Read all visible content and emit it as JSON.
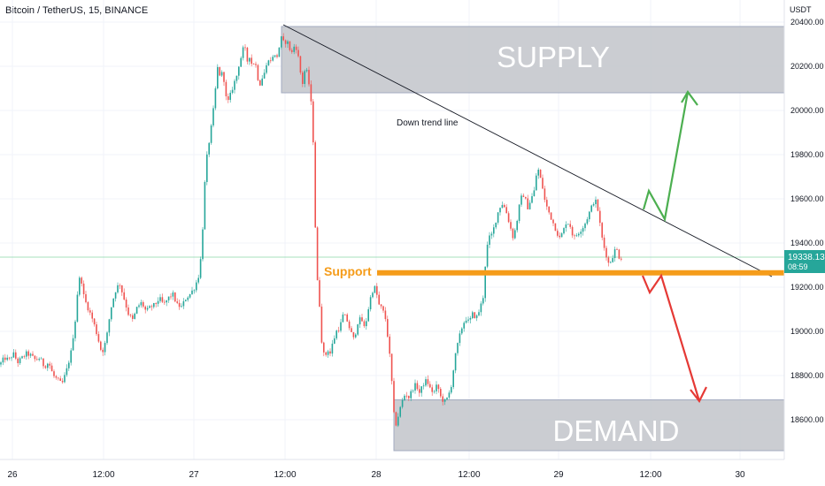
{
  "header": {
    "symbol_title": "Bitcoin / TetherUS, 15, BINANCE"
  },
  "price_axis": {
    "unit": "USDT",
    "ticks": [
      "20400.00",
      "20200.00",
      "20000.00",
      "19800.00",
      "19600.00",
      "19400.00",
      "19200.00",
      "19000.00",
      "18800.00",
      "18600.00"
    ]
  },
  "price_label": {
    "price": "19338.13",
    "countdown": "08:59",
    "color": "#26a69a"
  },
  "time_axis": {
    "ticks": [
      "26",
      "12:00",
      "27",
      "12:00",
      "28",
      "12:00",
      "29",
      "12:00",
      "30"
    ]
  },
  "annotations": {
    "supply_label": "SUPPLY",
    "demand_label": "DEMAND",
    "support_label": "Support",
    "trend_label": "Down trend line"
  },
  "colors": {
    "up": "#26a69a",
    "down": "#ef5350",
    "zone_fill": "#c9cbd0",
    "support": "#f59c1a",
    "arrow_up": "#4caf50",
    "arrow_down": "#e53935"
  },
  "chart_data": {
    "type": "candlestick",
    "ylim": [
      18460,
      20420
    ],
    "ylabel": "USDT",
    "supply_zone": [
      20080,
      20380
    ],
    "demand_zone": [
      18460,
      18690
    ],
    "support_level": 19265,
    "current_price": 19338.13,
    "close_path": [
      [
        0,
        18850
      ],
      [
        5,
        18880
      ],
      [
        10,
        18870
      ],
      [
        15,
        18900
      ],
      [
        20,
        18860
      ],
      [
        25,
        18880
      ],
      [
        30,
        18900
      ],
      [
        35,
        18890
      ],
      [
        40,
        18870
      ],
      [
        45,
        18880
      ],
      [
        50,
        18840
      ],
      [
        55,
        18860
      ],
      [
        60,
        18800
      ],
      [
        65,
        18780
      ],
      [
        70,
        18760
      ],
      [
        75,
        18820
      ],
      [
        80,
        18900
      ],
      [
        85,
        19050
      ],
      [
        88,
        19200
      ],
      [
        91,
        19260
      ],
      [
        95,
        19150
      ],
      [
        100,
        19100
      ],
      [
        105,
        19050
      ],
      [
        110,
        18980
      ],
      [
        115,
        18900
      ],
      [
        120,
        18960
      ],
      [
        125,
        19100
      ],
      [
        130,
        19180
      ],
      [
        135,
        19220
      ],
      [
        140,
        19150
      ],
      [
        145,
        19080
      ],
      [
        150,
        19050
      ],
      [
        155,
        19110
      ],
      [
        160,
        19130
      ],
      [
        165,
        19090
      ],
      [
        170,
        19110
      ],
      [
        175,
        19120
      ],
      [
        180,
        19150
      ],
      [
        185,
        19120
      ],
      [
        190,
        19150
      ],
      [
        195,
        19170
      ],
      [
        200,
        19120
      ],
      [
        205,
        19110
      ],
      [
        210,
        19150
      ],
      [
        215,
        19170
      ],
      [
        220,
        19200
      ],
      [
        225,
        19260
      ],
      [
        228,
        19380
      ],
      [
        231,
        19650
      ],
      [
        234,
        19800
      ],
      [
        237,
        19880
      ],
      [
        240,
        19960
      ],
      [
        243,
        20080
      ],
      [
        246,
        20200
      ],
      [
        249,
        20150
      ],
      [
        252,
        20180
      ],
      [
        255,
        20060
      ],
      [
        258,
        20040
      ],
      [
        261,
        20080
      ],
      [
        264,
        20120
      ],
      [
        267,
        20150
      ],
      [
        270,
        20210
      ],
      [
        273,
        20250
      ],
      [
        276,
        20300
      ],
      [
        279,
        20220
      ],
      [
        282,
        20250
      ],
      [
        285,
        20200
      ],
      [
        288,
        20230
      ],
      [
        291,
        20150
      ],
      [
        294,
        20120
      ],
      [
        297,
        20160
      ],
      [
        300,
        20180
      ],
      [
        303,
        20240
      ],
      [
        306,
        20220
      ],
      [
        309,
        20260
      ],
      [
        312,
        20230
      ],
      [
        315,
        20280
      ],
      [
        318,
        20330
      ],
      [
        321,
        20300
      ],
      [
        324,
        20320
      ],
      [
        327,
        20280
      ],
      [
        330,
        20260
      ],
      [
        333,
        20300
      ],
      [
        336,
        20270
      ],
      [
        339,
        20180
      ],
      [
        342,
        20120
      ],
      [
        345,
        20200
      ],
      [
        348,
        20150
      ],
      [
        351,
        20060
      ],
      [
        354,
        19850
      ],
      [
        356,
        19500
      ],
      [
        358,
        19250
      ],
      [
        361,
        19120
      ],
      [
        364,
        18920
      ],
      [
        367,
        18880
      ],
      [
        370,
        18920
      ],
      [
        373,
        18900
      ],
      [
        376,
        18950
      ],
      [
        380,
        19000
      ],
      [
        384,
        19020
      ],
      [
        388,
        19080
      ],
      [
        392,
        19050
      ],
      [
        396,
        19000
      ],
      [
        400,
        18960
      ],
      [
        404,
        19040
      ],
      [
        408,
        19060
      ],
      [
        412,
        19010
      ],
      [
        416,
        19100
      ],
      [
        420,
        19180
      ],
      [
        424,
        19200
      ],
      [
        428,
        19120
      ],
      [
        432,
        19100
      ],
      [
        436,
        19050
      ],
      [
        440,
        18900
      ],
      [
        443,
        18750
      ],
      [
        446,
        18560
      ],
      [
        450,
        18620
      ],
      [
        454,
        18680
      ],
      [
        458,
        18720
      ],
      [
        462,
        18700
      ],
      [
        466,
        18740
      ],
      [
        470,
        18760
      ],
      [
        474,
        18720
      ],
      [
        478,
        18760
      ],
      [
        482,
        18780
      ],
      [
        486,
        18740
      ],
      [
        490,
        18720
      ],
      [
        494,
        18760
      ],
      [
        498,
        18700
      ],
      [
        502,
        18680
      ],
      [
        506,
        18700
      ],
      [
        510,
        18760
      ],
      [
        514,
        18880
      ],
      [
        518,
        18960
      ],
      [
        522,
        19020
      ],
      [
        526,
        19060
      ],
      [
        530,
        19040
      ],
      [
        534,
        19080
      ],
      [
        538,
        19060
      ],
      [
        542,
        19100
      ],
      [
        546,
        19160
      ],
      [
        549,
        19350
      ],
      [
        552,
        19420
      ],
      [
        556,
        19440
      ],
      [
        560,
        19500
      ],
      [
        564,
        19560
      ],
      [
        568,
        19580
      ],
      [
        572,
        19540
      ],
      [
        576,
        19480
      ],
      [
        580,
        19420
      ],
      [
        584,
        19500
      ],
      [
        588,
        19600
      ],
      [
        592,
        19620
      ],
      [
        596,
        19560
      ],
      [
        600,
        19600
      ],
      [
        604,
        19640
      ],
      [
        607,
        19750
      ],
      [
        610,
        19700
      ],
      [
        613,
        19650
      ],
      [
        616,
        19580
      ],
      [
        620,
        19540
      ],
      [
        624,
        19500
      ],
      [
        628,
        19460
      ],
      [
        632,
        19420
      ],
      [
        636,
        19450
      ],
      [
        640,
        19500
      ],
      [
        644,
        19480
      ],
      [
        648,
        19420
      ],
      [
        652,
        19440
      ],
      [
        656,
        19460
      ],
      [
        660,
        19480
      ],
      [
        664,
        19520
      ],
      [
        668,
        19560
      ],
      [
        672,
        19600
      ],
      [
        675,
        19560
      ],
      [
        678,
        19480
      ],
      [
        681,
        19400
      ],
      [
        684,
        19360
      ],
      [
        688,
        19300
      ],
      [
        692,
        19340
      ],
      [
        696,
        19380
      ],
      [
        700,
        19330
      ],
      [
        704,
        19338
      ]
    ]
  }
}
